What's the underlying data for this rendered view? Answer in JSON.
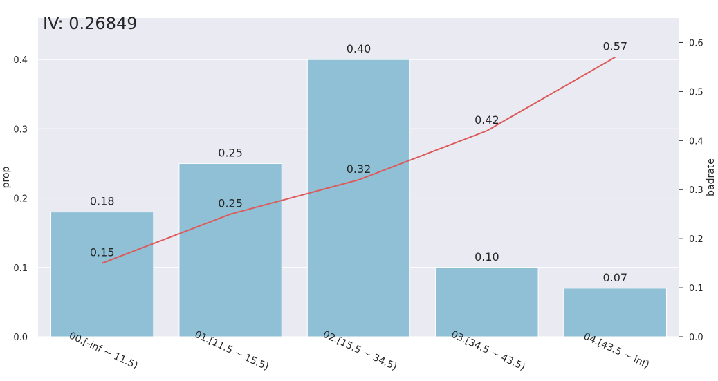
{
  "chart_data": {
    "type": "bar",
    "title": "IV: 0.26849",
    "categories": [
      "00.[-inf ~ 11.5)",
      "01.[11.5 ~ 15.5)",
      "02.[15.5 ~ 34.5)",
      "03.[34.5 ~ 43.5)",
      "04.[43.5 ~ inf)"
    ],
    "ylabel": "prop",
    "y2label": "badrate",
    "ylim": [
      0,
      0.46
    ],
    "y2lim": [
      0,
      0.65
    ],
    "yticks": [
      "0.0",
      "0.1",
      "0.2",
      "0.3",
      "0.4"
    ],
    "y2ticks": [
      "0.0",
      "0.1",
      "0.2",
      "0.3",
      "0.4",
      "0.5",
      "0.6"
    ],
    "grid": true,
    "series": [
      {
        "kind": "bar",
        "axis": "left",
        "color": "#8fc0d6",
        "values": [
          0.18,
          0.25,
          0.4,
          0.1,
          0.07
        ],
        "labels": [
          "0.18",
          "0.25",
          "0.40",
          "0.10",
          "0.07"
        ]
      },
      {
        "kind": "line",
        "axis": "right",
        "color": "#dc5a5a",
        "values": [
          0.15,
          0.25,
          0.32,
          0.42,
          0.57
        ],
        "labels": [
          "0.15",
          "0.25",
          "0.32",
          "0.42",
          "0.57"
        ]
      }
    ],
    "background": "#eaeaf2",
    "gridcolor": "#ffffff"
  }
}
